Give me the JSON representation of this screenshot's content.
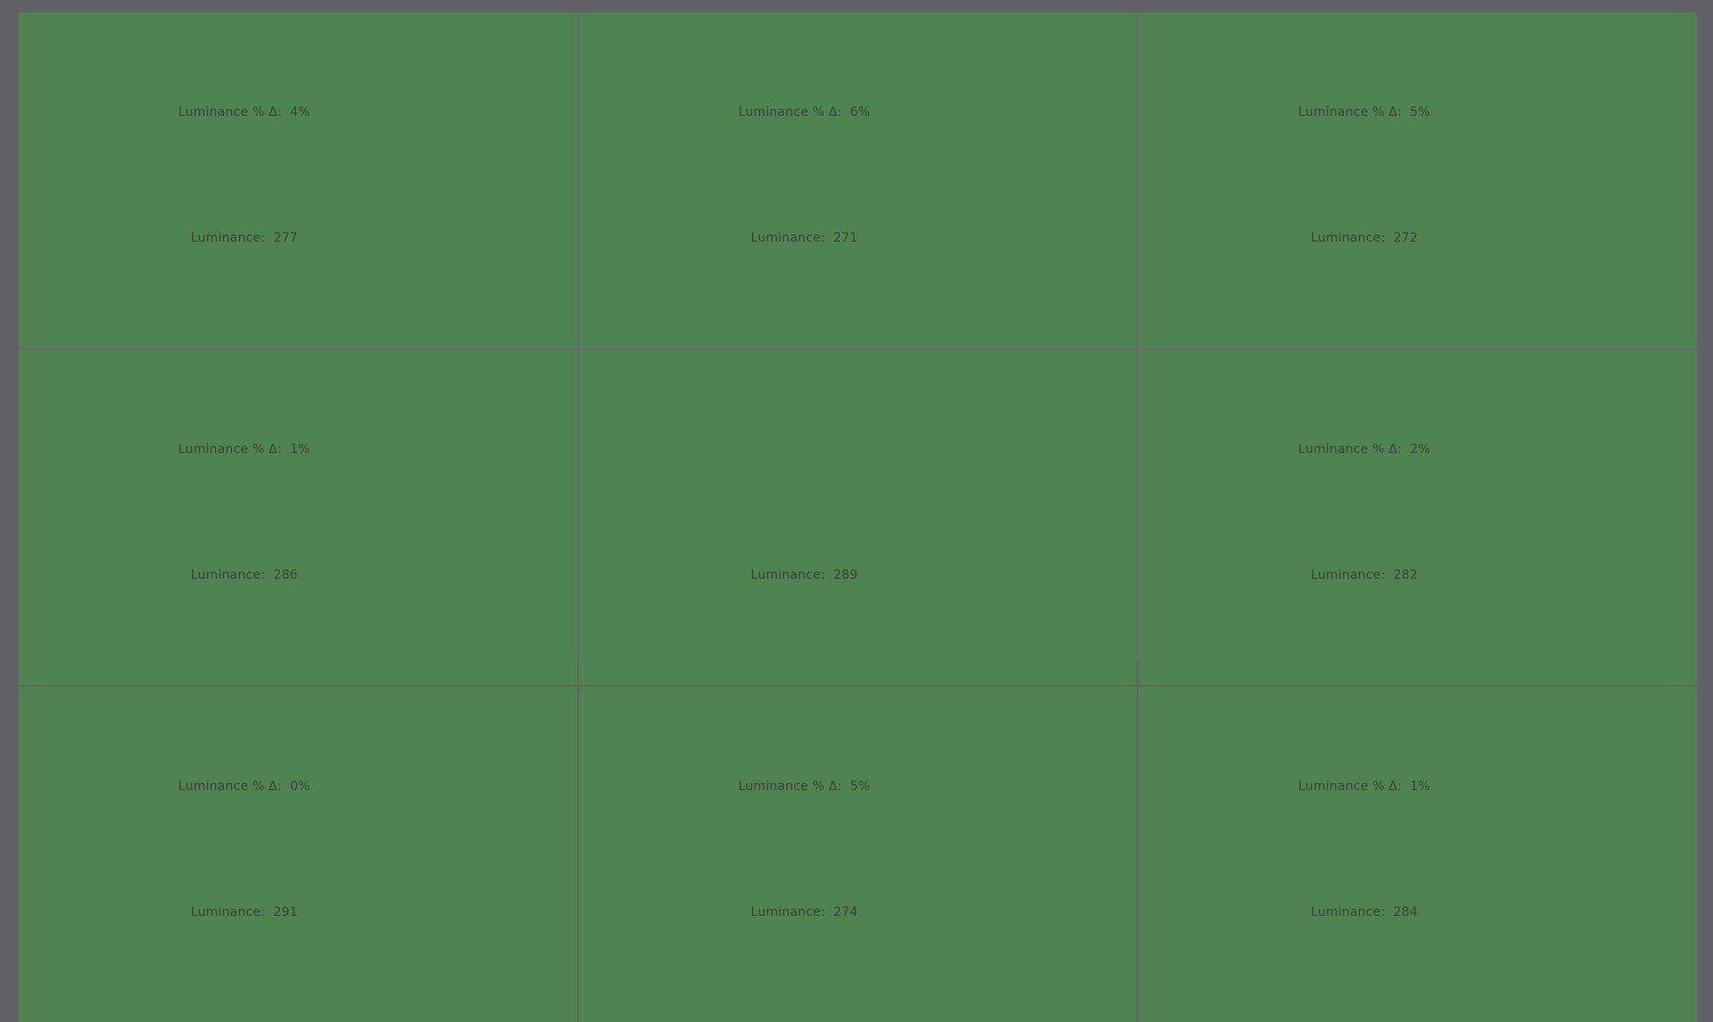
{
  "colors": {
    "background": "#626264",
    "tile_green": "#4f8350",
    "divider": "#6b6770",
    "text": "#3b4238"
  },
  "labels": {
    "delta_prefix": "Luminance % Δ:",
    "luminance_prefix": "Luminance:"
  },
  "grid": {
    "rows": 3,
    "cols": 3,
    "cells": [
      {
        "row": 1,
        "col": 1,
        "delta_pct": 4,
        "luminance": 277,
        "line1": "Luminance % Δ:  4%",
        "line2": "Luminance:  277"
      },
      {
        "row": 1,
        "col": 2,
        "delta_pct": 6,
        "luminance": 271,
        "line1": "Luminance % Δ:  6%",
        "line2": "Luminance:  271"
      },
      {
        "row": 1,
        "col": 3,
        "delta_pct": 5,
        "luminance": 272,
        "line1": "Luminance % Δ:  5%",
        "line2": "Luminance:  272"
      },
      {
        "row": 2,
        "col": 1,
        "delta_pct": 1,
        "luminance": 286,
        "line1": "Luminance % Δ:  1%",
        "line2": "Luminance:  286"
      },
      {
        "row": 2,
        "col": 2,
        "delta_pct": null,
        "luminance": 289,
        "line1": "",
        "line2": "Luminance:  289"
      },
      {
        "row": 2,
        "col": 3,
        "delta_pct": 2,
        "luminance": 282,
        "line1": "Luminance % Δ:  2%",
        "line2": "Luminance:  282"
      },
      {
        "row": 3,
        "col": 1,
        "delta_pct": 0,
        "luminance": 291,
        "line1": "Luminance % Δ:  0%",
        "line2": "Luminance:  291"
      },
      {
        "row": 3,
        "col": 2,
        "delta_pct": 5,
        "luminance": 274,
        "line1": "Luminance % Δ:  5%",
        "line2": "Luminance:  274"
      },
      {
        "row": 3,
        "col": 3,
        "delta_pct": 1,
        "luminance": 284,
        "line1": "Luminance % Δ:  1%",
        "line2": "Luminance:  284"
      }
    ]
  }
}
